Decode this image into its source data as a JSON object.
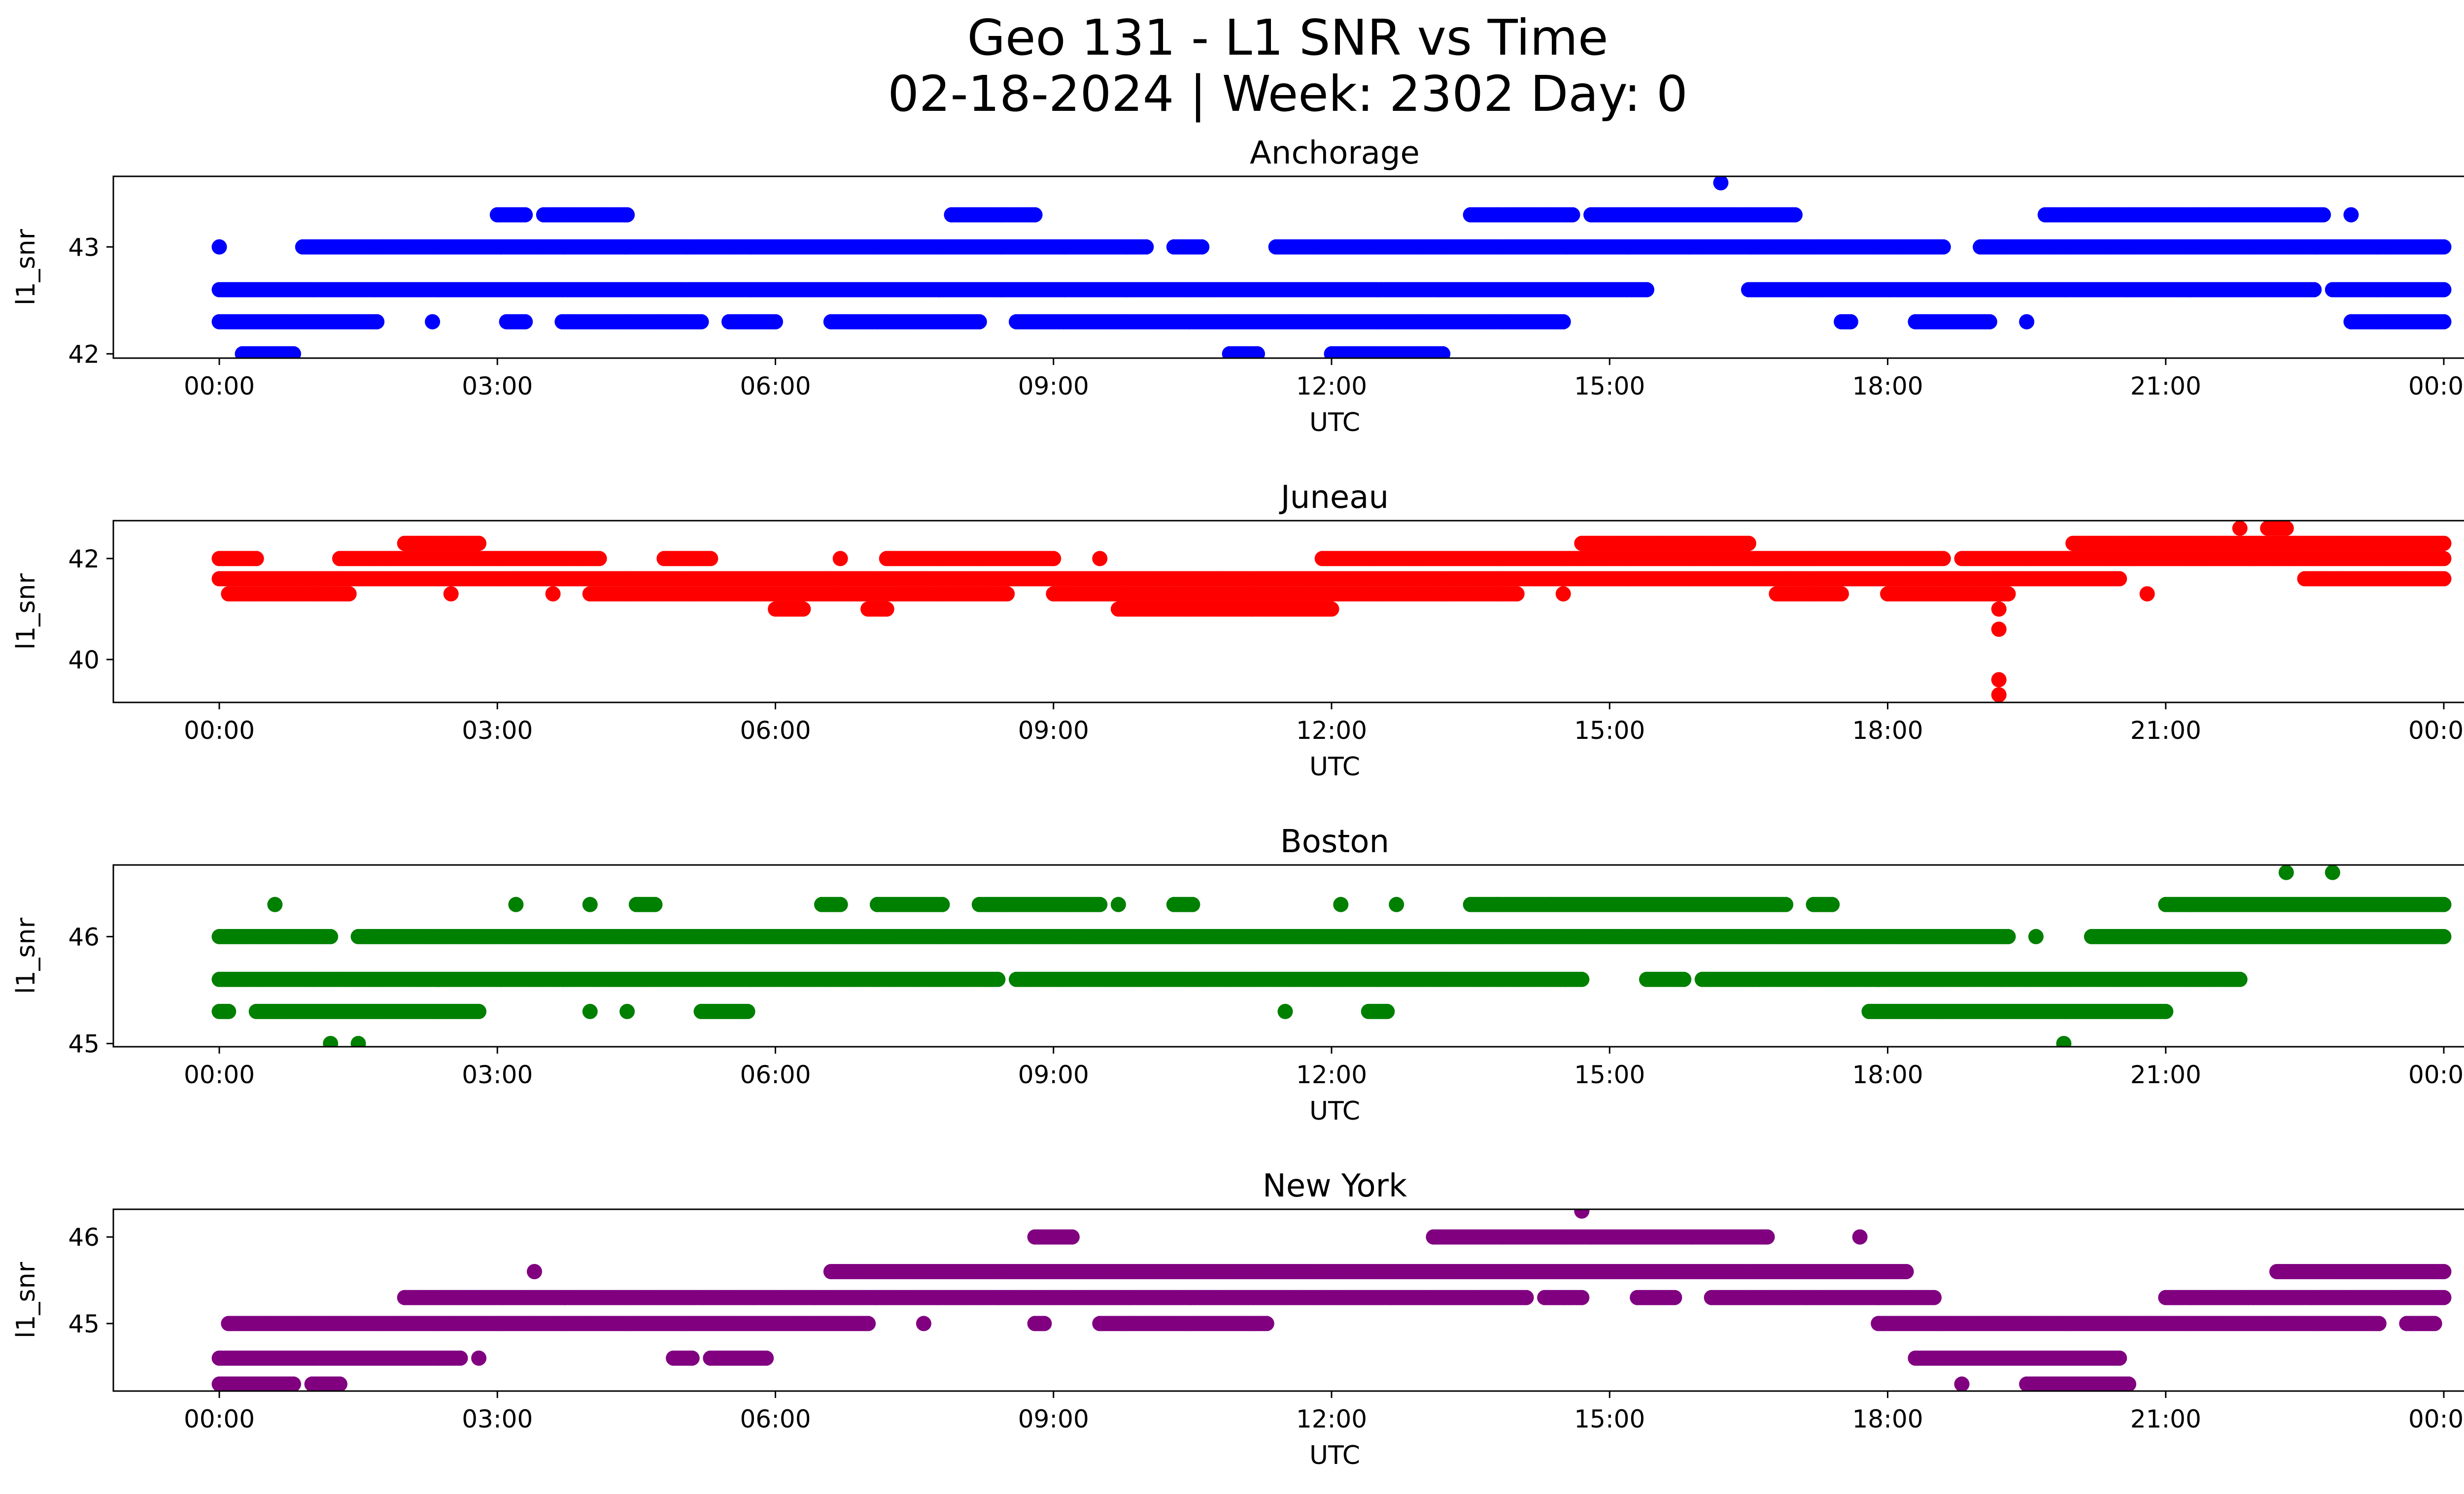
{
  "figure": {
    "title_line1": "Geo 131 - L1 SNR vs Time",
    "title_line2": "02-18-2024 | Week: 2302 Day: 0"
  },
  "chart_data": [
    {
      "type": "scatter",
      "title": "Anchorage",
      "color": "#0000ff",
      "xlabel": "UTC",
      "ylabel": "l1_snr",
      "xlim": [
        "2024-02-17 22:52",
        "2024-02-19 01:08"
      ],
      "ylim": [
        41.96,
        43.66
      ],
      "xticks": [
        "00:00",
        "03:00",
        "06:00",
        "09:00",
        "12:00",
        "15:00",
        "18:00",
        "21:00",
        "00:00"
      ],
      "yticks": [
        42,
        43
      ],
      "series": [
        {
          "y": 42.0,
          "segments": [
            [
              0.25,
              0.8
            ],
            [
              10.9,
              11.2
            ],
            [
              12.0,
              13.2
            ]
          ]
        },
        {
          "y": 42.3,
          "segments": [
            [
              0.0,
              1.7
            ],
            [
              2.3,
              2.3
            ],
            [
              3.1,
              3.3
            ],
            [
              3.7,
              5.2
            ],
            [
              5.5,
              6.0
            ],
            [
              6.6,
              8.2
            ],
            [
              8.6,
              14.5
            ],
            [
              17.5,
              17.6
            ],
            [
              18.3,
              19.1
            ],
            [
              19.5,
              19.5
            ],
            [
              23.0,
              24.0
            ]
          ]
        },
        {
          "y": 42.6,
          "segments": [
            [
              0.0,
              15.4
            ],
            [
              16.5,
              22.6
            ],
            [
              22.8,
              24.0
            ]
          ]
        },
        {
          "y": 43.0,
          "segments": [
            [
              0.0,
              0.0
            ],
            [
              0.9,
              10.0
            ],
            [
              10.3,
              10.6
            ],
            [
              11.4,
              18.6
            ],
            [
              19.0,
              24.0
            ]
          ]
        },
        {
          "y": 43.3,
          "segments": [
            [
              3.0,
              3.3
            ],
            [
              3.5,
              4.4
            ],
            [
              7.9,
              8.8
            ],
            [
              13.5,
              14.6
            ],
            [
              14.8,
              17.0
            ],
            [
              19.7,
              22.7
            ],
            [
              23.0,
              23.0
            ]
          ]
        },
        {
          "y": 43.6,
          "segments": [
            [
              16.2,
              16.2
            ]
          ]
        }
      ]
    },
    {
      "type": "scatter",
      "title": "Juneau",
      "color": "#ff0000",
      "xlabel": "UTC",
      "ylabel": "l1_snr",
      "xlim": [
        "2024-02-17 22:52",
        "2024-02-19 01:08"
      ],
      "ylim": [
        39.15,
        42.75
      ],
      "xticks": [
        "00:00",
        "03:00",
        "06:00",
        "09:00",
        "12:00",
        "15:00",
        "18:00",
        "21:00",
        "00:00"
      ],
      "yticks": [
        40,
        42
      ],
      "series": [
        {
          "y": 39.3,
          "segments": [
            [
              19.2,
              19.2
            ]
          ]
        },
        {
          "y": 39.6,
          "segments": [
            [
              19.2,
              19.2
            ]
          ]
        },
        {
          "y": 40.6,
          "segments": [
            [
              19.2,
              19.2
            ]
          ]
        },
        {
          "y": 41.0,
          "segments": [
            [
              19.2,
              19.2
            ],
            [
              6.0,
              6.3
            ],
            [
              7.0,
              7.2
            ],
            [
              9.7,
              12.0
            ]
          ]
        },
        {
          "y": 41.3,
          "segments": [
            [
              0.1,
              1.4
            ],
            [
              2.5,
              2.5
            ],
            [
              3.6,
              3.6
            ],
            [
              4.0,
              8.5
            ],
            [
              9.0,
              14.0
            ],
            [
              14.5,
              14.5
            ],
            [
              16.8,
              17.5
            ],
            [
              18.0,
              19.3
            ],
            [
              20.8,
              20.8
            ]
          ]
        },
        {
          "y": 41.6,
          "segments": [
            [
              0.0,
              20.5
            ],
            [
              22.5,
              24.0
            ]
          ]
        },
        {
          "y": 42.0,
          "segments": [
            [
              0.0,
              0.4
            ],
            [
              1.3,
              4.1
            ],
            [
              4.8,
              5.3
            ],
            [
              6.7,
              6.7
            ],
            [
              7.2,
              9.0
            ],
            [
              9.5,
              9.5
            ],
            [
              11.9,
              18.6
            ],
            [
              18.8,
              24.0
            ]
          ]
        },
        {
          "y": 42.3,
          "segments": [
            [
              2.0,
              2.8
            ],
            [
              14.7,
              16.5
            ],
            [
              20.0,
              24.0
            ]
          ]
        },
        {
          "y": 42.6,
          "segments": [
            [
              21.8,
              21.8
            ],
            [
              22.1,
              22.3
            ]
          ]
        }
      ]
    },
    {
      "type": "scatter",
      "title": "Boston",
      "color": "#008000",
      "xlabel": "UTC",
      "ylabel": "l1_snr",
      "xlim": [
        "2024-02-17 22:52",
        "2024-02-19 01:08"
      ],
      "ylim": [
        44.97,
        46.67
      ],
      "xticks": [
        "00:00",
        "03:00",
        "06:00",
        "09:00",
        "12:00",
        "15:00",
        "18:00",
        "21:00",
        "00:00"
      ],
      "yticks": [
        45,
        46
      ],
      "series": [
        {
          "y": 45.0,
          "segments": [
            [
              1.2,
              1.2
            ],
            [
              1.5,
              1.5
            ],
            [
              19.9,
              19.9
            ]
          ]
        },
        {
          "y": 45.3,
          "segments": [
            [
              0.0,
              0.1
            ],
            [
              0.4,
              2.8
            ],
            [
              4.0,
              4.0
            ],
            [
              4.4,
              4.4
            ],
            [
              5.2,
              5.7
            ],
            [
              11.5,
              11.5
            ],
            [
              12.4,
              12.6
            ],
            [
              17.8,
              21.0
            ]
          ]
        },
        {
          "y": 45.6,
          "segments": [
            [
              0.0,
              8.4
            ],
            [
              8.6,
              14.7
            ],
            [
              15.4,
              15.8
            ],
            [
              16.0,
              21.8
            ]
          ]
        },
        {
          "y": 46.0,
          "segments": [
            [
              0.0,
              1.2
            ],
            [
              1.5,
              19.3
            ],
            [
              19.6,
              19.6
            ],
            [
              20.2,
              24.0
            ]
          ]
        },
        {
          "y": 46.3,
          "segments": [
            [
              0.6,
              0.6
            ],
            [
              3.2,
              3.2
            ],
            [
              4.0,
              4.0
            ],
            [
              4.5,
              4.7
            ],
            [
              6.5,
              6.7
            ],
            [
              7.1,
              7.8
            ],
            [
              8.2,
              9.5
            ],
            [
              9.7,
              9.7
            ],
            [
              10.3,
              10.5
            ],
            [
              12.1,
              12.1
            ],
            [
              12.7,
              12.7
            ],
            [
              13.5,
              16.9
            ],
            [
              17.2,
              17.4
            ],
            [
              21.0,
              24.0
            ]
          ]
        },
        {
          "y": 46.6,
          "segments": [
            [
              22.3,
              22.3
            ],
            [
              22.8,
              22.8
            ]
          ]
        }
      ]
    },
    {
      "type": "scatter",
      "title": "New York",
      "color": "#800080",
      "xlabel": "UTC",
      "ylabel": "l1_snr",
      "xlim": [
        "2024-02-17 22:52",
        "2024-02-19 01:08"
      ],
      "ylim": [
        44.22,
        46.32
      ],
      "xticks": [
        "00:00",
        "03:00",
        "06:00",
        "09:00",
        "12:00",
        "15:00",
        "18:00",
        "21:00",
        "00:00"
      ],
      "yticks": [
        45,
        46
      ],
      "series": [
        {
          "y": 44.3,
          "segments": [
            [
              0.0,
              0.8
            ],
            [
              1.0,
              1.3
            ],
            [
              18.8,
              18.8
            ],
            [
              19.5,
              20.6
            ]
          ]
        },
        {
          "y": 44.6,
          "segments": [
            [
              0.0,
              2.6
            ],
            [
              2.8,
              2.8
            ],
            [
              4.9,
              5.1
            ],
            [
              5.3,
              5.9
            ],
            [
              18.3,
              20.5
            ]
          ]
        },
        {
          "y": 45.0,
          "segments": [
            [
              0.1,
              7.0
            ],
            [
              7.6,
              7.6
            ],
            [
              8.8,
              8.9
            ],
            [
              9.5,
              11.3
            ],
            [
              17.9,
              23.3
            ],
            [
              23.6,
              23.9
            ]
          ]
        },
        {
          "y": 45.3,
          "segments": [
            [
              2.0,
              14.1
            ],
            [
              14.3,
              14.7
            ],
            [
              15.3,
              15.7
            ],
            [
              16.1,
              18.5
            ],
            [
              21.0,
              24.0
            ]
          ]
        },
        {
          "y": 45.6,
          "segments": [
            [
              3.4,
              3.4
            ],
            [
              6.6,
              18.2
            ],
            [
              22.2,
              24.0
            ]
          ]
        },
        {
          "y": 46.0,
          "segments": [
            [
              8.8,
              9.2
            ],
            [
              13.1,
              16.7
            ],
            [
              17.7,
              17.7
            ]
          ]
        },
        {
          "y": 46.3,
          "segments": [
            [
              14.7,
              14.7
            ]
          ]
        }
      ]
    }
  ]
}
